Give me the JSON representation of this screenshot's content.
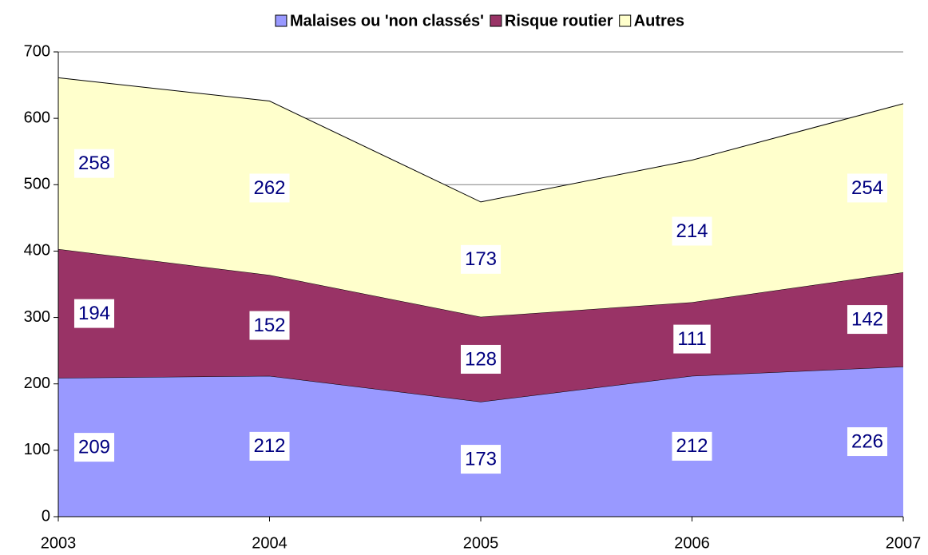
{
  "chart_data": {
    "type": "stacked-area",
    "categories": [
      "2003",
      "2004",
      "2005",
      "2006",
      "2007"
    ],
    "series": [
      {
        "name": "Malaises ou 'non classés'",
        "color": "#9999ff",
        "values": [
          209,
          212,
          173,
          212,
          226
        ]
      },
      {
        "name": "Risque routier",
        "color": "#993366",
        "values": [
          194,
          152,
          128,
          111,
          142
        ]
      },
      {
        "name": "Autres",
        "color": "#ffffcc",
        "values": [
          258,
          262,
          173,
          214,
          254
        ]
      }
    ],
    "ylim": [
      0,
      700
    ],
    "yticks": [
      0,
      100,
      200,
      300,
      400,
      500,
      600,
      700
    ],
    "grid": true,
    "legend": "top"
  }
}
